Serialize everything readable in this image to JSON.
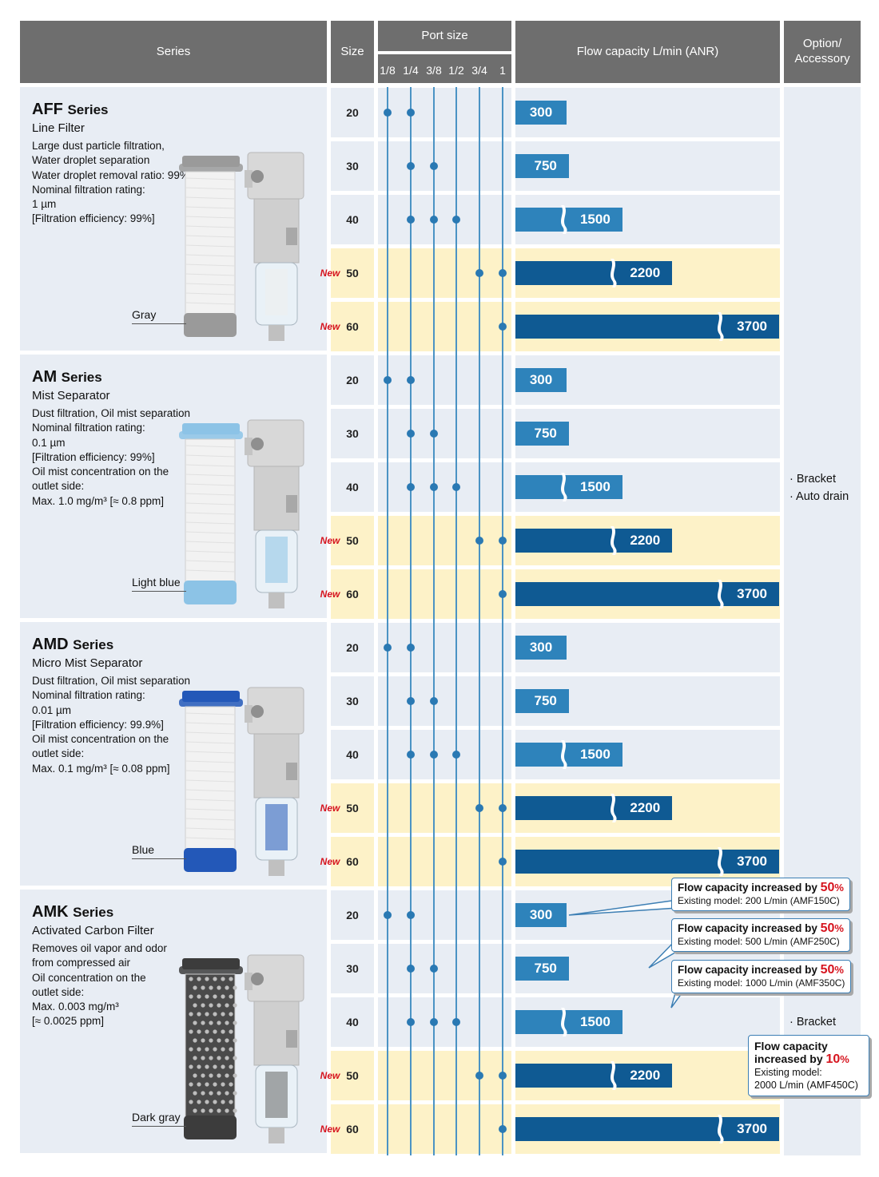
{
  "header": {
    "series": "Series",
    "size": "Size",
    "port_size": "Port size",
    "port_sizes": [
      "1/8",
      "1/4",
      "3/8",
      "1/2",
      "3/4",
      "1"
    ],
    "flow": "Flow capacity L/min (ANR)",
    "option_line1": "Option/",
    "option_line2": "Accessory"
  },
  "colors": {
    "header_bg": "#6e6e6e",
    "row_blue": "#e8edf4",
    "row_yellow": "#fdf2c8",
    "bar_light": "#2e83bb",
    "bar_dark": "#0f5a93",
    "new_red": "#d6141e"
  },
  "new_label": "New",
  "series": [
    {
      "name": "AFF",
      "suffix": "Series",
      "subtitle": "Line Filter",
      "description": "Large dust particle filtration,\nWater droplet separation\nWater droplet removal ratio: 99%\nNominal filtration rating:\n1 µm\n [Filtration efficiency: 99%]",
      "colour_label": "Gray",
      "element_color": "#9a9a9a",
      "element_style": "fiber"
    },
    {
      "name": "AM",
      "suffix": "Series",
      "subtitle": "Mist Separator",
      "description": "Dust filtration, Oil mist separation\nNominal filtration rating:\n0.1 µm\n[Filtration efficiency: 99%]\nOil mist concentration on the\noutlet side:\n Max. 1.0 mg/m³ [≈ 0.8 ppm]",
      "colour_label": "Light blue",
      "element_color": "#8cc3e6",
      "element_style": "fiber"
    },
    {
      "name": "AMD",
      "suffix": "Series",
      "subtitle": "Micro Mist Separator",
      "description": "Dust filtration, Oil mist separation\nNominal filtration rating:\n0.01 µm\n[Filtration efficiency: 99.9%]\nOil mist concentration on the\noutlet side:\n Max. 0.1 mg/m³ [≈ 0.08 ppm]",
      "colour_label": "Blue",
      "element_color": "#2358b8",
      "element_style": "fiber"
    },
    {
      "name": "AMK",
      "suffix": "Series",
      "subtitle": "Activated Carbon Filter",
      "description": "Removes oil vapor and odor\nfrom compressed air\nOil concentration on the\noutlet side:\nMax.  0.003 mg/m³\n [≈ 0.0025 ppm]",
      "colour_label": "Dark gray",
      "element_color": "#3c3c3c",
      "element_style": "mesh"
    }
  ],
  "rows": [
    {
      "size": "20",
      "ports": [
        "1/8",
        "1/4"
      ],
      "flow": "300",
      "new": false
    },
    {
      "size": "30",
      "ports": [
        "1/4",
        "3/8"
      ],
      "flow": "750",
      "new": false
    },
    {
      "size": "40",
      "ports": [
        "1/4",
        "3/8",
        "1/2"
      ],
      "flow": "1500",
      "new": false
    },
    {
      "size": "50",
      "ports": [
        "3/4",
        "1"
      ],
      "flow": "2200",
      "new": true
    },
    {
      "size": "60",
      "ports": [
        "1"
      ],
      "flow": "3700",
      "new": true
    }
  ],
  "options": {
    "group1": [
      "· Bracket",
      "· Auto drain"
    ],
    "group2": [
      "· Bracket"
    ]
  },
  "callouts": [
    {
      "title": "Flow capacity increased by ",
      "pct": "50",
      "unit": "%",
      "sub": "Existing model: 200 L/min (AMF150C)"
    },
    {
      "title": "Flow capacity increased by ",
      "pct": "50",
      "unit": "%",
      "sub": "Existing model: 500 L/min (AMF250C)"
    },
    {
      "title": "Flow capacity increased by ",
      "pct": "50",
      "unit": "%",
      "sub": "Existing model: 1000 L/min (AMF350C)"
    },
    {
      "title_line1": "Flow capacity",
      "title_line2": "increased by ",
      "pct": "10",
      "unit": "%",
      "sub_line1": "Existing model:",
      "sub_line2": "2000 L/min (AMF450C)"
    }
  ]
}
